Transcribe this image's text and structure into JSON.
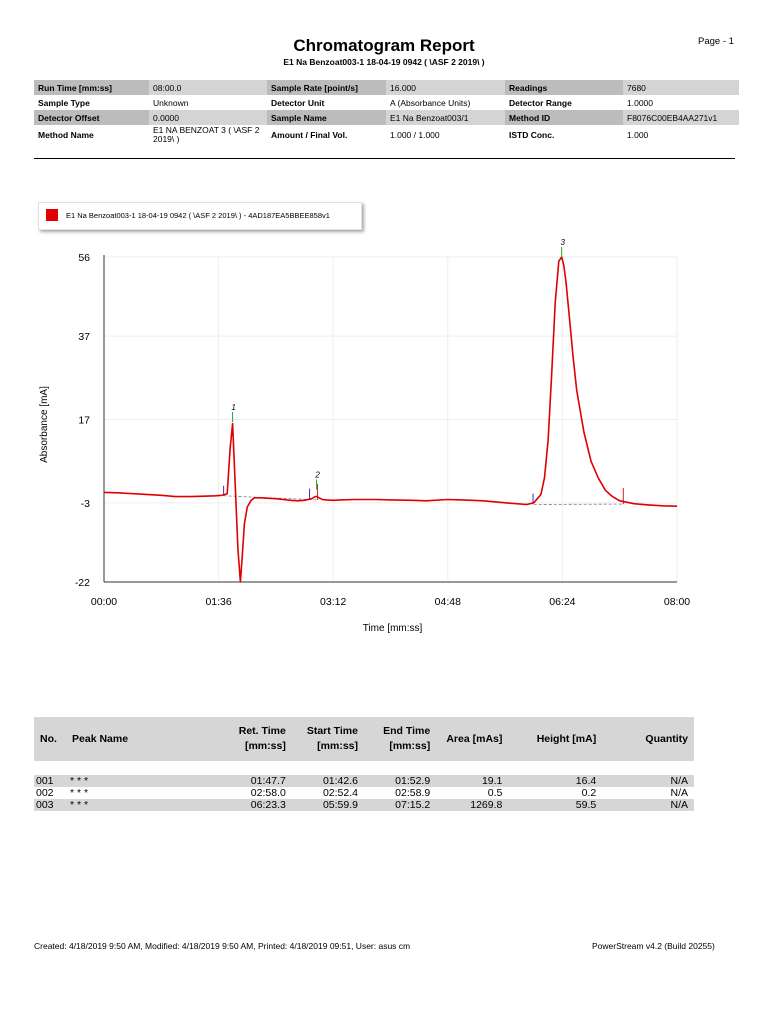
{
  "header": {
    "title": "Chromatogram Report",
    "subtitle": "E1 Na Benzoat003-1 18-04-19 0942  ( \\ASF 2 2019\\ )",
    "page": "Page - 1"
  },
  "info": {
    "rows": [
      [
        {
          "label": "Run Time [mm:ss]",
          "value": "08:00.0"
        },
        {
          "label": "Sample Rate [point/s]",
          "value": "16.000"
        },
        {
          "label": "Readings",
          "value": "7680"
        }
      ],
      [
        {
          "label": "Sample Type",
          "value": "Unknown"
        },
        {
          "label": "Detector Unit",
          "value": "A (Absorbance Units)"
        },
        {
          "label": "Detector Range",
          "value": "1.0000"
        }
      ],
      [
        {
          "label": "Detector Offset",
          "value": "0.0000"
        },
        {
          "label": "Sample Name",
          "value": "E1 Na Benzoat003/1"
        },
        {
          "label": "Method ID",
          "value": "F8076C00EB4AA271v1"
        }
      ],
      [
        {
          "label": "Method Name",
          "value": "E1 NA BENZOAT 3 ( \\ASF 2 2019\\ )"
        },
        {
          "label": "Amount / Final Vol.",
          "value": "1.000 / 1.000"
        },
        {
          "label": "ISTD Conc.",
          "value": "1.000"
        }
      ]
    ]
  },
  "legend": {
    "text": "E1 Na Benzoat003-1 18-04-19 0942  ( \\ASF 2 2019\\ ) - 4AD187EA5BBEE858v1",
    "color": "#e00000"
  },
  "chart_data": {
    "type": "line",
    "xlabel": "Time [mm:ss]",
    "ylabel": "Absorbance [mA]",
    "x_ticks": [
      "00:00",
      "01:36",
      "03:12",
      "04:48",
      "06:24",
      "08:00"
    ],
    "x_tick_values": [
      0,
      1.6,
      3.2,
      4.8,
      6.4,
      8.0
    ],
    "y_ticks": [
      56,
      37,
      17,
      -3,
      -22
    ],
    "xlim": [
      0,
      8.0
    ],
    "ylim": [
      -22,
      56
    ],
    "grid": true,
    "line_color": "#e00000",
    "series": [
      {
        "x": [
          0,
          0.2,
          0.5,
          0.8,
          1.0,
          1.2,
          1.4,
          1.55,
          1.65,
          1.72,
          1.76,
          1.795,
          1.83,
          1.87,
          1.905,
          1.93,
          1.96,
          2.0,
          2.05,
          2.1,
          2.2,
          2.3,
          2.4,
          2.5,
          2.6,
          2.7,
          2.8,
          2.9,
          2.95,
          2.97,
          3.0,
          3.05,
          3.1,
          3.2,
          3.3,
          3.5,
          3.8,
          4.0,
          4.3,
          4.5,
          4.8,
          5.0,
          5.3,
          5.6,
          5.9,
          6.0,
          6.1,
          6.15,
          6.2,
          6.25,
          6.3,
          6.35,
          6.39,
          6.42,
          6.45,
          6.5,
          6.55,
          6.6,
          6.7,
          6.8,
          6.9,
          7.0,
          7.1,
          7.2,
          7.4,
          7.6,
          7.8,
          8.0
        ],
        "y": [
          -0.5,
          -0.6,
          -0.9,
          -1.2,
          -1.5,
          -1.5,
          -1.4,
          -1.3,
          -1.2,
          -0.8,
          10,
          16,
          2,
          -14,
          -22,
          -16,
          -8,
          -4,
          -2.5,
          -1.8,
          -1.8,
          -1.9,
          -2.0,
          -2.2,
          -2.4,
          -2.5,
          -2.4,
          -2.0,
          -1.5,
          -1.5,
          -1.8,
          -2.2,
          -2.3,
          -2.4,
          -2.3,
          -2.2,
          -2.2,
          -2.3,
          -2.4,
          -2.5,
          -2.2,
          -2.3,
          -2.5,
          -3.0,
          -3.4,
          -3.0,
          -1.0,
          3.0,
          12.0,
          28.0,
          45.0,
          55.0,
          56.0,
          54.0,
          50.0,
          41.0,
          32.0,
          24.0,
          14.0,
          7.0,
          3.0,
          0.0,
          -1.5,
          -2.5,
          -3.2,
          -3.5,
          -3.7,
          -3.8
        ]
      }
    ],
    "peaks": [
      {
        "label": "1",
        "x": 1.795,
        "y": 16.4
      },
      {
        "label": "2",
        "x": 2.968,
        "y": 0.2
      },
      {
        "label": "3",
        "x": 6.39,
        "y": 56.0
      }
    ]
  },
  "peak_table": {
    "headers": {
      "no": "No.",
      "name": "Peak Name",
      "ret_1": "Ret. Time",
      "ret_2": "[mm:ss]",
      "start_1": "Start Time",
      "start_2": "[mm:ss]",
      "end_1": "End Time",
      "end_2": "[mm:ss]",
      "area": "Area [mAs]",
      "height": "Height [mA]",
      "quantity": "Quantity"
    },
    "rows": [
      {
        "no": "001",
        "name": "* * *",
        "ret": "01:47.7",
        "start": "01:42.6",
        "end": "01:52.9",
        "area": "19.1",
        "height": "16.4",
        "quantity": "N/A"
      },
      {
        "no": "002",
        "name": "* * *",
        "ret": "02:58.0",
        "start": "02:52.4",
        "end": "02:58.9",
        "area": "0.5",
        "height": "0.2",
        "quantity": "N/A"
      },
      {
        "no": "003",
        "name": "* * *",
        "ret": "06:23.3",
        "start": "05:59.9",
        "end": "07:15.2",
        "area": "1269.8",
        "height": "59.5",
        "quantity": "N/A"
      }
    ]
  },
  "footer": {
    "left": "Created: 4/18/2019 9:50 AM,   Modified: 4/18/2019 9:50 AM,   Printed: 4/18/2019 09:51,   User: asus cm",
    "right": "PowerStream v4.2 (Build 20255)"
  }
}
